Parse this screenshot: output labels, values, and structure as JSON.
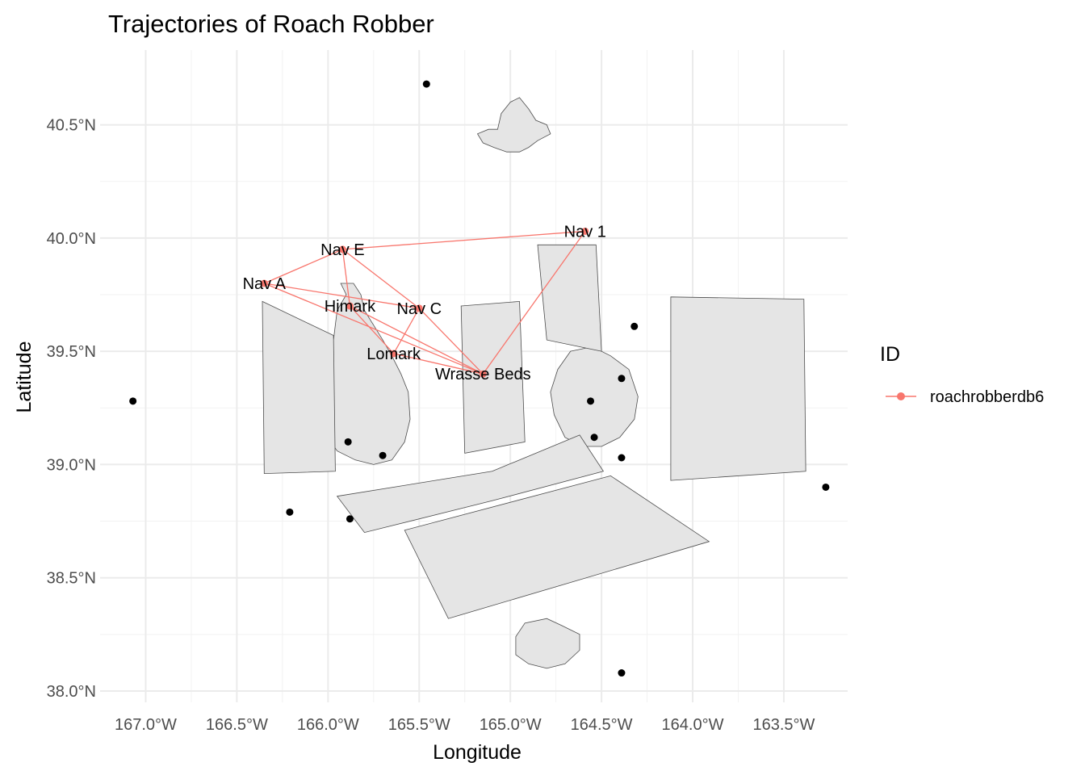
{
  "title": "Trajectories of Roach Robber",
  "xlabel": "Longitude",
  "ylabel": "Latitude",
  "x_ticks": [
    {
      "value": -167.0,
      "label": "167.0°W"
    },
    {
      "value": -166.5,
      "label": "166.5°W"
    },
    {
      "value": -166.0,
      "label": "166.0°W"
    },
    {
      "value": -165.5,
      "label": "165.5°W"
    },
    {
      "value": -165.0,
      "label": "165.0°W"
    },
    {
      "value": -164.5,
      "label": "164.5°W"
    },
    {
      "value": -164.0,
      "label": "164.0°W"
    },
    {
      "value": -163.5,
      "label": "163.5°W"
    }
  ],
  "y_ticks": [
    {
      "value": 38.0,
      "label": "38.0°N"
    },
    {
      "value": 38.5,
      "label": "38.5°N"
    },
    {
      "value": 39.0,
      "label": "39.0°N"
    },
    {
      "value": 39.5,
      "label": "39.5°N"
    },
    {
      "value": 40.0,
      "label": "40.0°N"
    },
    {
      "value": 40.5,
      "label": "40.5°N"
    }
  ],
  "legend": {
    "title": "ID",
    "items": [
      {
        "label": "roachrobberdb6",
        "color": "#F8766D"
      }
    ]
  },
  "chart_data": {
    "type": "map",
    "title": "Trajectories of Roach Robber",
    "xlabel": "Longitude",
    "ylabel": "Latitude",
    "xlim": [
      -167.25,
      -163.15
    ],
    "ylim": [
      37.95,
      40.83
    ],
    "grid": true,
    "legend_position": "right",
    "track_color": "#F8766D",
    "land_color": "#E5E5E5",
    "series": [
      {
        "name": "roachrobberdb6",
        "locations": [
          {
            "name": "Nav 1",
            "lon": -164.59,
            "lat": 40.03
          },
          {
            "name": "Nav E",
            "lon": -165.92,
            "lat": 39.95
          },
          {
            "name": "Nav A",
            "lon": -166.35,
            "lat": 39.8
          },
          {
            "name": "Himark",
            "lon": -165.88,
            "lat": 39.7
          },
          {
            "name": "Nav C",
            "lon": -165.5,
            "lat": 39.69
          },
          {
            "name": "Lomark",
            "lon": -165.64,
            "lat": 39.49
          },
          {
            "name": "Wrasse Beds",
            "lon": -165.15,
            "lat": 39.4
          }
        ],
        "path": [
          [
            "Nav 1",
            "Nav E"
          ],
          [
            "Nav E",
            "Nav A"
          ],
          [
            "Nav A",
            "Nav C"
          ],
          [
            "Nav E",
            "Nav C"
          ],
          [
            "Nav C",
            "Wrasse Beds"
          ],
          [
            "Nav E",
            "Himark"
          ],
          [
            "Himark",
            "Lomark"
          ],
          [
            "Lomark",
            "Nav C"
          ],
          [
            "Himark",
            "Wrasse Beds"
          ],
          [
            "Lomark",
            "Wrasse Beds"
          ],
          [
            "Nav A",
            "Wrasse Beds"
          ],
          [
            "Wrasse Beds",
            "Nav 1"
          ]
        ]
      }
    ],
    "points": [
      {
        "lon": -165.46,
        "lat": 40.68
      },
      {
        "lon": -167.07,
        "lat": 39.28
      },
      {
        "lon": -164.32,
        "lat": 39.61
      },
      {
        "lon": -164.39,
        "lat": 39.38
      },
      {
        "lon": -164.56,
        "lat": 39.28
      },
      {
        "lon": -164.54,
        "lat": 39.12
      },
      {
        "lon": -164.39,
        "lat": 39.03
      },
      {
        "lon": -165.89,
        "lat": 39.1
      },
      {
        "lon": -165.7,
        "lat": 39.04
      },
      {
        "lon": -163.27,
        "lat": 38.9
      },
      {
        "lon": -166.21,
        "lat": 38.79
      },
      {
        "lon": -165.88,
        "lat": 38.76
      },
      {
        "lon": -164.39,
        "lat": 38.08
      }
    ],
    "land": [
      {
        "name": "north-island",
        "coords": [
          [
            -165.07,
            40.48
          ],
          [
            -165.05,
            40.55
          ],
          [
            -165.0,
            40.6
          ],
          [
            -164.95,
            40.62
          ],
          [
            -164.9,
            40.57
          ],
          [
            -164.86,
            40.52
          ],
          [
            -164.8,
            40.5
          ],
          [
            -164.78,
            40.46
          ],
          [
            -164.85,
            40.43
          ],
          [
            -164.9,
            40.4
          ],
          [
            -164.95,
            40.38
          ],
          [
            -165.02,
            40.38
          ],
          [
            -165.09,
            40.4
          ],
          [
            -165.15,
            40.42
          ],
          [
            -165.18,
            40.46
          ],
          [
            -165.12,
            40.48
          ]
        ]
      },
      {
        "name": "west-island",
        "coords": [
          [
            -165.9,
            39.75
          ],
          [
            -165.95,
            39.68
          ],
          [
            -165.97,
            39.55
          ],
          [
            -165.98,
            39.42
          ],
          [
            -166.0,
            39.3
          ],
          [
            -166.02,
            39.2
          ],
          [
            -166.0,
            39.12
          ],
          [
            -165.95,
            39.06
          ],
          [
            -165.85,
            39.02
          ],
          [
            -165.75,
            39.0
          ],
          [
            -165.65,
            39.02
          ],
          [
            -165.58,
            39.1
          ],
          [
            -165.55,
            39.2
          ],
          [
            -165.56,
            39.32
          ],
          [
            -165.6,
            39.4
          ],
          [
            -165.65,
            39.48
          ],
          [
            -165.7,
            39.55
          ],
          [
            -165.8,
            39.68
          ],
          [
            -165.82,
            39.75
          ],
          [
            -165.86,
            39.8
          ],
          [
            -165.93,
            39.8
          ]
        ]
      },
      {
        "name": "east-island",
        "coords": [
          [
            -164.67,
            39.5
          ],
          [
            -164.55,
            39.52
          ],
          [
            -164.45,
            39.48
          ],
          [
            -164.35,
            39.42
          ],
          [
            -164.3,
            39.3
          ],
          [
            -164.32,
            39.2
          ],
          [
            -164.4,
            39.12
          ],
          [
            -164.5,
            39.08
          ],
          [
            -164.6,
            39.08
          ],
          [
            -164.7,
            39.12
          ],
          [
            -164.76,
            39.22
          ],
          [
            -164.78,
            39.32
          ],
          [
            -164.74,
            39.42
          ]
        ]
      },
      {
        "name": "south-island",
        "coords": [
          [
            -164.72,
            38.29
          ],
          [
            -164.8,
            38.32
          ],
          [
            -164.92,
            38.3
          ],
          [
            -164.97,
            38.24
          ],
          [
            -164.97,
            38.16
          ],
          [
            -164.9,
            38.12
          ],
          [
            -164.8,
            38.1
          ],
          [
            -164.7,
            38.12
          ],
          [
            -164.62,
            38.18
          ],
          [
            -164.62,
            38.25
          ]
        ]
      },
      {
        "name": "zone-west",
        "coords": [
          [
            -166.36,
            39.72
          ],
          [
            -165.97,
            39.57
          ],
          [
            -165.96,
            38.97
          ],
          [
            -166.35,
            38.96
          ]
        ]
      },
      {
        "name": "zone-center",
        "coords": [
          [
            -165.27,
            39.7
          ],
          [
            -164.95,
            39.72
          ],
          [
            -164.92,
            39.1
          ],
          [
            -165.25,
            39.05
          ]
        ]
      },
      {
        "name": "zone-ne",
        "coords": [
          [
            -164.85,
            39.97
          ],
          [
            -164.53,
            39.97
          ],
          [
            -164.5,
            39.5
          ],
          [
            -164.8,
            39.55
          ]
        ]
      },
      {
        "name": "zone-east",
        "coords": [
          [
            -164.12,
            39.74
          ],
          [
            -163.39,
            39.73
          ],
          [
            -163.38,
            38.97
          ],
          [
            -164.12,
            38.93
          ]
        ]
      },
      {
        "name": "zone-diag-1",
        "coords": [
          [
            -165.95,
            38.86
          ],
          [
            -165.1,
            38.97
          ],
          [
            -164.62,
            39.13
          ],
          [
            -164.49,
            38.97
          ],
          [
            -165.1,
            38.84
          ],
          [
            -165.8,
            38.7
          ]
        ]
      },
      {
        "name": "zone-diag-2",
        "coords": [
          [
            -165.58,
            38.71
          ],
          [
            -164.45,
            38.95
          ],
          [
            -163.91,
            38.66
          ],
          [
            -165.34,
            38.32
          ]
        ]
      }
    ]
  }
}
